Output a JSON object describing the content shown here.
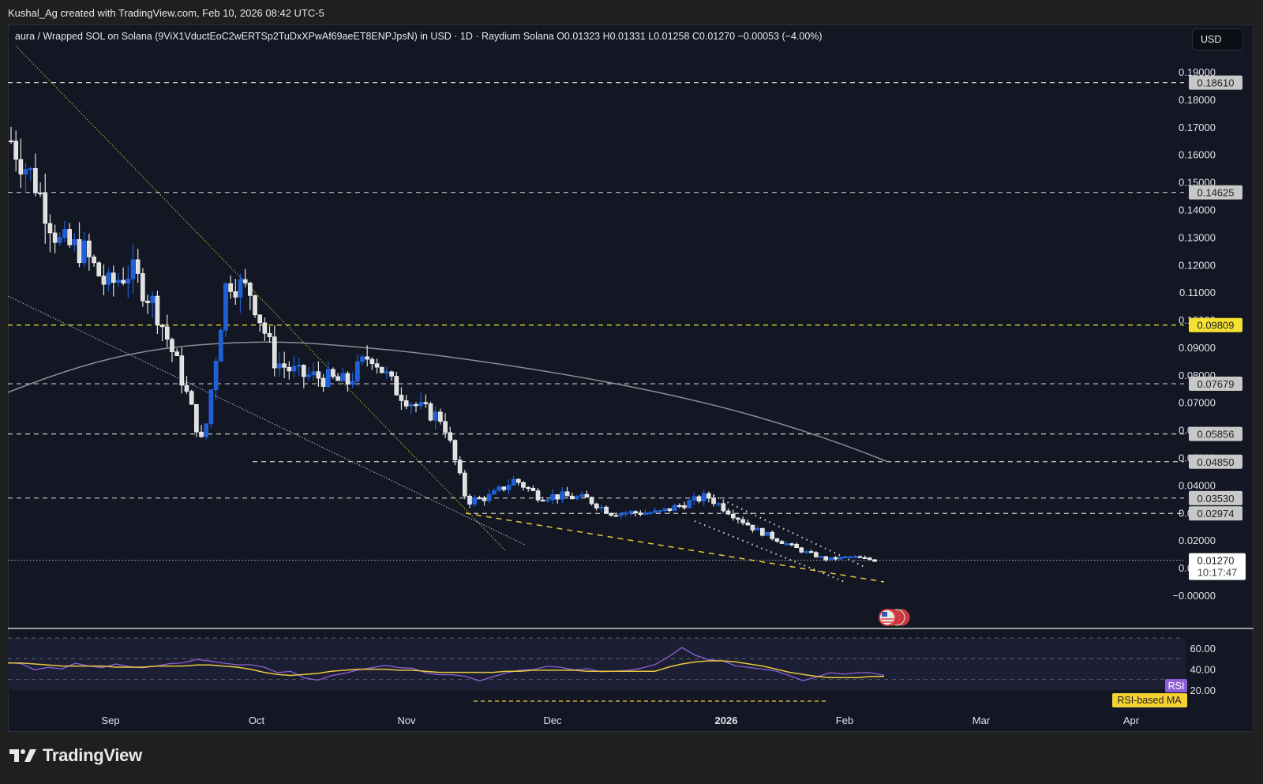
{
  "credit": "Kushal_Ag created with TradingView.com, Feb 10, 2026 08:42 UTC-5",
  "legend": {
    "symbol": "aura / Wrapped SOL on Solana (9ViX1VductEoC2wERTSp2TuDxXPwAf69aeET8ENPJpsN) in USD",
    "interval": "1D",
    "exchange": "Raydium Solana",
    "open": "O0.01323",
    "high": "H0.01331",
    "low": "L0.01258",
    "close": "C0.01270",
    "change": "−0.00053 (−4.00%)",
    "full": "aura / Wrapped SOL on Solana (9ViX1VductEoC2wERTSp2TuDxXPwAf69aeET8ENPJpsN) in USD · 1D · Raydium Solana  O0.01323  H0.01331  L0.01258  C0.01270  −0.00053 (−4.00%)"
  },
  "currency_button": "USD",
  "branding": "TradingView",
  "colors": {
    "background": "#121723",
    "up": "#e0e0e0",
    "down": "#1e5fd6",
    "yellow": "#f5e132",
    "rsi": "#8e5fd6",
    "rsi_ma": "#e8c840",
    "ma": "#8a8d96"
  },
  "chart_data": [
    {
      "type": "candlestick",
      "title": "aura / Wrapped SOL on Solana in USD · 1D · Raydium Solana",
      "ylabel": "USD",
      "ylim": [
        0.0,
        0.19
      ],
      "y_ticks": [
        "0.19000",
        "0.18000",
        "0.17000",
        "0.16000",
        "0.15000",
        "0.14000",
        "0.13000",
        "0.12000",
        "0.11000",
        "0.10000",
        "0.09000",
        "0.08000",
        "0.07000",
        "0.06000",
        "0.05000",
        "0.04000",
        "0.03000",
        "0.02000",
        "0.01000",
        "−0.00000"
      ],
      "x_ticks": [
        "Sep",
        "Oct",
        "Nov",
        "Dec",
        "2026",
        "Feb",
        "Mar",
        "Apr"
      ],
      "horizontal_levels": [
        {
          "value": "0.18610",
          "style": "dashed",
          "color": "#c8c8c8"
        },
        {
          "value": "0.14625",
          "style": "dashed",
          "color": "#c8c8c8"
        },
        {
          "value": "0.09809",
          "style": "dashed",
          "color": "#f5e132"
        },
        {
          "value": "0.07679",
          "style": "dashed",
          "color": "#c8c8c8"
        },
        {
          "value": "0.05856",
          "style": "dashed",
          "color": "#c8c8c8"
        },
        {
          "value": "0.04850",
          "style": "dashed",
          "color": "#c8c8c8"
        },
        {
          "value": "0.03530",
          "style": "dashed",
          "color": "#c8c8c8"
        },
        {
          "value": "0.02974",
          "style": "dashed",
          "color": "#c8c8c8"
        }
      ],
      "last_price": {
        "value": "0.01270",
        "countdown": "10:17:47"
      },
      "trendlines": [
        "long-term yellow dotted downtrend from top-left",
        "white dotted downtrend",
        "yellow dashed support from mid-Nov to Feb",
        "white dotted descending channel Jan–Feb"
      ],
      "moving_average": "grey line peaking ~0.092 in Oct, declining to ~0.052 by Feb",
      "series_close_approx": {
        "dates": [
          "Aug-20",
          "Aug-25",
          "Sep-01",
          "Sep-05",
          "Sep-10",
          "Sep-15",
          "Sep-20",
          "Sep-25",
          "Oct-01",
          "Oct-03",
          "Oct-05",
          "Oct-10",
          "Oct-15",
          "Oct-20",
          "Oct-25",
          "Oct-30",
          "Nov-01",
          "Nov-05",
          "Nov-10",
          "Nov-15",
          "Nov-20",
          "Nov-25",
          "Dec-01",
          "Dec-05",
          "Dec-10",
          "Dec-15",
          "Dec-20",
          "Dec-25",
          "Jan-01",
          "Jan-05",
          "Jan-10",
          "Jan-15",
          "Jan-20",
          "Jan-25",
          "Feb-01",
          "Feb-05",
          "Feb-10"
        ],
        "close": [
          0.165,
          0.15,
          0.128,
          0.125,
          0.112,
          0.118,
          0.105,
          0.082,
          0.054,
          0.115,
          0.11,
          0.085,
          0.08,
          0.079,
          0.077,
          0.088,
          0.075,
          0.068,
          0.064,
          0.034,
          0.036,
          0.042,
          0.036,
          0.036,
          0.035,
          0.03,
          0.03,
          0.03,
          0.033,
          0.036,
          0.03,
          0.024,
          0.02,
          0.016,
          0.013,
          0.014,
          0.0127
        ]
      }
    },
    {
      "type": "line",
      "title": "RSI",
      "ylim": [
        20,
        70
      ],
      "y_ticks": [
        "60.00",
        "40.00",
        "20.00"
      ],
      "bands": [
        70,
        50,
        30
      ],
      "series": [
        {
          "name": "RSI",
          "color": "#8e5fd6"
        },
        {
          "name": "RSI-based MA",
          "color": "#e8c840"
        }
      ],
      "labels": {
        "rsi": "RSI",
        "rsi_ma": "RSI-based MA"
      }
    }
  ]
}
